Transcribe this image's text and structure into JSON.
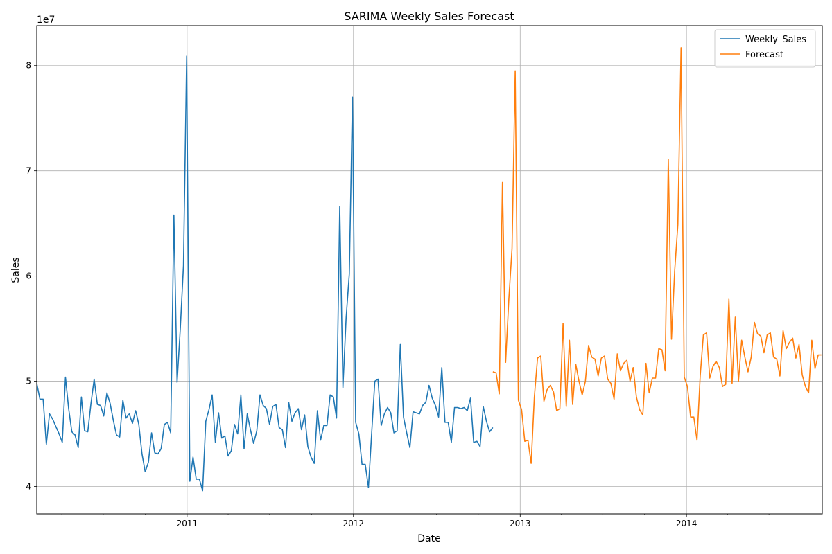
{
  "chart_data": {
    "type": "line",
    "title": "SARIMA Weekly Sales Forecast",
    "xlabel": "Date",
    "ylabel": "Sales",
    "y_offset_label": "1e7",
    "y_scale": 10000000,
    "grid": true,
    "legend_position": "top-right",
    "xlim": [
      "2010-02-05",
      "2014-10-26"
    ],
    "ylim": [
      37400000,
      83800000
    ],
    "x_ticks": [
      {
        "date": "2011-01-01",
        "label": "2011"
      },
      {
        "date": "2012-01-01",
        "label": "2012"
      },
      {
        "date": "2013-01-01",
        "label": "2013"
      },
      {
        "date": "2014-01-01",
        "label": "2014"
      }
    ],
    "y_ticks": [
      {
        "value": 40000000,
        "label": "4"
      },
      {
        "value": 50000000,
        "label": "5"
      },
      {
        "value": 60000000,
        "label": "6"
      },
      {
        "value": 70000000,
        "label": "7"
      },
      {
        "value": 80000000,
        "label": "8"
      }
    ],
    "series": [
      {
        "name": "Weekly_Sales",
        "color": "#1f77b4",
        "start": "2010-02-05",
        "step_days": 7,
        "values": [
          49800000,
          48300000,
          48300000,
          44000000,
          46900000,
          46400000,
          45700000,
          45000000,
          44200000,
          50400000,
          47400000,
          45200000,
          44900000,
          43700000,
          48500000,
          45300000,
          45200000,
          47900000,
          50200000,
          47800000,
          47700000,
          46700000,
          48900000,
          47900000,
          46300000,
          44900000,
          44700000,
          48200000,
          46500000,
          46900000,
          46000000,
          47200000,
          45900000,
          43100000,
          41400000,
          42300000,
          45100000,
          43200000,
          43100000,
          43600000,
          45900000,
          46100000,
          45100000,
          65800000,
          49900000,
          55000000,
          61000000,
          80900000,
          40500000,
          42800000,
          40700000,
          40700000,
          39600000,
          46200000,
          47300000,
          48700000,
          44200000,
          47000000,
          44600000,
          44800000,
          42900000,
          43400000,
          45900000,
          45000000,
          48700000,
          43600000,
          46900000,
          45400000,
          44100000,
          45300000,
          48700000,
          47700000,
          47400000,
          45900000,
          47600000,
          47800000,
          45600000,
          45400000,
          43700000,
          48000000,
          46200000,
          47000000,
          47400000,
          45400000,
          46800000,
          43800000,
          42800000,
          42200000,
          47200000,
          44400000,
          45800000,
          45800000,
          48700000,
          48500000,
          46500000,
          66600000,
          49400000,
          56000000,
          60200000,
          77000000,
          46100000,
          45000000,
          42100000,
          42100000,
          39900000,
          45000000,
          50000000,
          50200000,
          45800000,
          46900000,
          47500000,
          47000000,
          45100000,
          45300000,
          53500000,
          46600000,
          45100000,
          43700000,
          47100000,
          47000000,
          46900000,
          47700000,
          48000000,
          49600000,
          48400000,
          47700000,
          46600000,
          51300000,
          46100000,
          46100000,
          44200000,
          47500000,
          47500000,
          47400000,
          47500000,
          47200000,
          48400000,
          44200000,
          44300000,
          43800000,
          47600000,
          46200000,
          45200000,
          45600000
        ]
      },
      {
        "name": "Forecast",
        "color": "#ff7f0e",
        "start": "2012-11-02",
        "step_days": 7,
        "values": [
          50900000,
          50800000,
          48800000,
          68900000,
          51800000,
          57800000,
          62600000,
          79500000,
          48200000,
          47300000,
          44300000,
          44400000,
          42200000,
          48500000,
          52200000,
          52400000,
          48100000,
          49200000,
          49600000,
          49000000,
          47200000,
          47400000,
          55500000,
          47600000,
          53900000,
          47800000,
          51600000,
          50000000,
          48700000,
          50000000,
          53400000,
          52300000,
          52100000,
          50500000,
          52200000,
          52400000,
          50200000,
          49800000,
          48300000,
          52600000,
          51000000,
          51700000,
          52000000,
          50000000,
          51300000,
          48500000,
          47300000,
          46800000,
          51700000,
          48900000,
          50300000,
          50300000,
          53100000,
          53000000,
          51000000,
          71100000,
          54000000,
          60500000,
          64900000,
          81700000,
          50400000,
          49500000,
          46600000,
          46600000,
          44400000,
          50500000,
          54400000,
          54600000,
          50300000,
          51400000,
          51900000,
          51300000,
          49500000,
          49700000,
          57800000,
          49800000,
          56100000,
          50000000,
          53900000,
          52300000,
          50900000,
          52300000,
          55600000,
          54500000,
          54300000,
          52700000,
          54400000,
          54600000,
          52300000,
          52100000,
          50500000,
          54800000,
          53100000,
          53700000,
          54100000,
          52200000,
          53500000,
          50600000,
          49500000,
          48900000,
          53900000,
          51200000,
          52500000,
          52500000
        ]
      }
    ]
  }
}
